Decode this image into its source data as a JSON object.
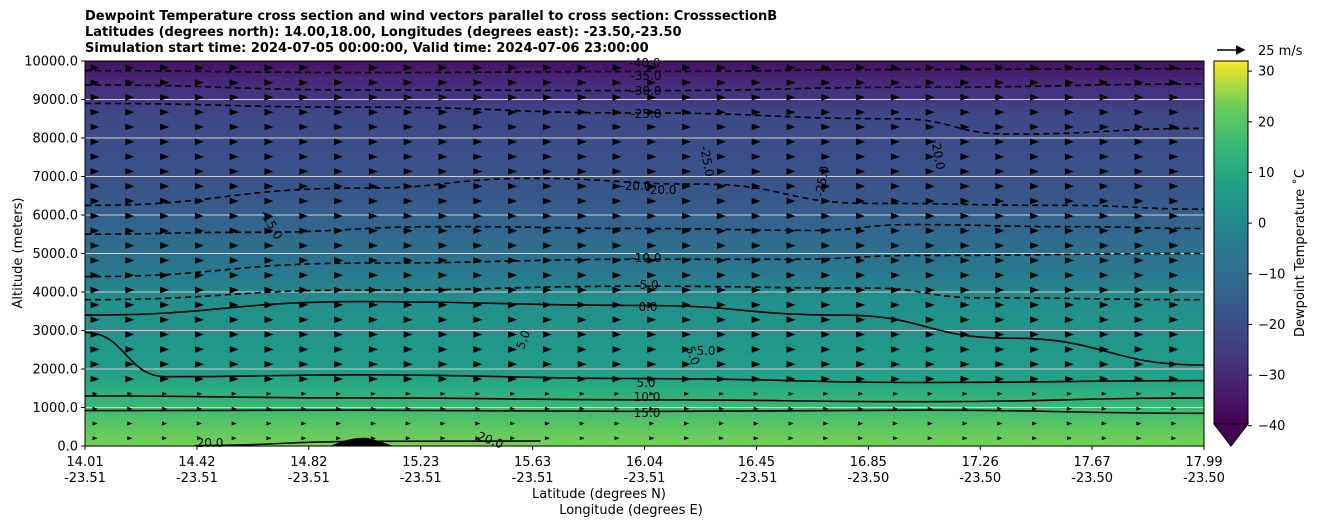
{
  "titles": [
    "Dewpoint Temperature cross section and wind vectors parallel to cross section: CrosssectionB",
    "Latitudes (degrees north): 14.00,18.00, Longitudes (degrees east): -23.50,-23.50",
    "Simulation start time: 2024-07-05 00:00:00, Valid time: 2024-07-06 23:00:00"
  ],
  "chart_data": {
    "type": "heatmap",
    "ylabel": "Altitude (meters)",
    "xlabel_lat": "Latitude (degrees N)",
    "xlabel_lon": "Longitude (degrees E)",
    "ylim": [
      0,
      10000
    ],
    "y_ticks": [
      "0.0",
      "1000.0",
      "2000.0",
      "3000.0",
      "4000.0",
      "5000.0",
      "6000.0",
      "7000.0",
      "8000.0",
      "9000.0",
      "10000.0"
    ],
    "x_ticks": [
      {
        "lat": "14.01",
        "lon": "-23.51"
      },
      {
        "lat": "14.42",
        "lon": "-23.51"
      },
      {
        "lat": "14.82",
        "lon": "-23.51"
      },
      {
        "lat": "15.23",
        "lon": "-23.51"
      },
      {
        "lat": "15.63",
        "lon": "-23.51"
      },
      {
        "lat": "16.04",
        "lon": "-23.51"
      },
      {
        "lat": "16.45",
        "lon": "-23.51"
      },
      {
        "lat": "16.85",
        "lon": "-23.50"
      },
      {
        "lat": "17.26",
        "lon": "-23.50"
      },
      {
        "lat": "17.67",
        "lon": "-23.50"
      },
      {
        "lat": "17.99",
        "lon": "-23.50"
      }
    ],
    "horizontal_grid": true,
    "colorbar": {
      "label": "Dewpoint Temperature ˚C",
      "ticks": [
        "30",
        "20",
        "10",
        "0",
        "−10",
        "−20",
        "−30",
        "−40"
      ],
      "range": [
        -44,
        32
      ],
      "colormap": "viridis",
      "extend": "min"
    },
    "wind_reference": "25 m/s",
    "dewpoint_profile": [
      {
        "alt": 0,
        "value": 24
      },
      {
        "alt": 500,
        "value": 20
      },
      {
        "alt": 1000,
        "value": 15
      },
      {
        "alt": 1500,
        "value": 10
      },
      {
        "alt": 2000,
        "value": 5
      },
      {
        "alt": 3000,
        "value": 2
      },
      {
        "alt": 3800,
        "value": 0
      },
      {
        "alt": 4200,
        "value": -5
      },
      {
        "alt": 4900,
        "value": -10
      },
      {
        "alt": 5700,
        "value": -15
      },
      {
        "alt": 6500,
        "value": -20
      },
      {
        "alt": 8600,
        "value": -25
      },
      {
        "alt": 9100,
        "value": -30
      },
      {
        "alt": 9600,
        "value": -35
      },
      {
        "alt": 10000,
        "value": -40
      }
    ],
    "contour_labels": [
      "-40.0",
      "-35.0",
      "-30.0",
      "-25.0",
      "-25.0",
      "-25.0",
      "-20.0",
      "-20.0",
      "-20.0",
      "-15.0",
      "-10.0",
      "-5.0",
      "0.0",
      "5.0",
      "5.0",
      "5.0",
      "5.0",
      "10.0",
      "15.0",
      "20.0",
      "20.0"
    ],
    "contours": [
      {
        "value": -35,
        "dashed": true,
        "points": [
          [
            14.01,
            9750
          ],
          [
            15.0,
            9700
          ],
          [
            16.0,
            9730
          ],
          [
            17.0,
            9780
          ],
          [
            17.99,
            9800
          ]
        ]
      },
      {
        "value": -30,
        "dashed": true,
        "points": [
          [
            14.01,
            9380
          ],
          [
            15.0,
            9250
          ],
          [
            16.0,
            9230
          ],
          [
            17.0,
            9320
          ],
          [
            17.99,
            9400
          ]
        ]
      },
      {
        "value": -25,
        "dashed": true,
        "points": [
          [
            14.01,
            8900
          ],
          [
            15.0,
            8800
          ],
          [
            16.0,
            8650
          ],
          [
            16.9,
            8500
          ],
          [
            17.3,
            8100
          ],
          [
            17.99,
            8250
          ]
        ]
      },
      {
        "value": -20,
        "dashed": true,
        "points": [
          [
            14.01,
            6250
          ],
          [
            15.0,
            6700
          ],
          [
            15.6,
            6950
          ],
          [
            16.2,
            6800
          ],
          [
            16.8,
            6300
          ],
          [
            17.5,
            6250
          ],
          [
            17.99,
            6150
          ]
        ]
      },
      {
        "value": -15,
        "dashed": true,
        "points": [
          [
            14.01,
            5500
          ],
          [
            14.6,
            5550
          ],
          [
            15.3,
            5700
          ],
          [
            16.0,
            5650
          ],
          [
            16.6,
            5600
          ],
          [
            16.95,
            5750
          ],
          [
            17.5,
            5700
          ],
          [
            17.99,
            5650
          ]
        ]
      },
      {
        "value": -10,
        "dashed": true,
        "points": [
          [
            14.01,
            4400
          ],
          [
            15.0,
            4750
          ],
          [
            16.0,
            4850
          ],
          [
            16.5,
            4850
          ],
          [
            17.0,
            4950
          ],
          [
            17.99,
            5000
          ]
        ]
      },
      {
        "value": -5,
        "dashed": true,
        "points": [
          [
            14.01,
            3800
          ],
          [
            15.0,
            4050
          ],
          [
            16.0,
            4150
          ],
          [
            16.8,
            4100
          ],
          [
            17.2,
            3850
          ],
          [
            17.99,
            3800
          ]
        ]
      },
      {
        "value": 0,
        "dashed": false,
        "points": [
          [
            14.01,
            3400
          ],
          [
            15.0,
            3750
          ],
          [
            16.0,
            3650
          ],
          [
            16.7,
            3400
          ],
          [
            17.3,
            2800
          ],
          [
            17.99,
            2100
          ]
        ]
      },
      {
        "value": 5,
        "dashed": false,
        "points": [
          [
            14.01,
            2950
          ],
          [
            14.3,
            1800
          ],
          [
            15.0,
            1850
          ],
          [
            16.0,
            1750
          ],
          [
            17.0,
            1650
          ],
          [
            17.99,
            1700
          ]
        ]
      },
      {
        "value": 10,
        "dashed": false,
        "points": [
          [
            14.01,
            1300
          ],
          [
            15.0,
            1250
          ],
          [
            16.0,
            1200
          ],
          [
            17.0,
            1150
          ],
          [
            17.99,
            1250
          ]
        ]
      },
      {
        "value": 15,
        "dashed": false,
        "points": [
          [
            14.01,
            920
          ],
          [
            15.0,
            930
          ],
          [
            16.0,
            900
          ],
          [
            17.0,
            930
          ],
          [
            17.99,
            850
          ]
        ]
      },
      {
        "value": 20,
        "dashed": false,
        "points": [
          [
            14.4,
            10
          ],
          [
            15.0,
            120
          ],
          [
            15.63,
            130
          ]
        ]
      }
    ]
  }
}
